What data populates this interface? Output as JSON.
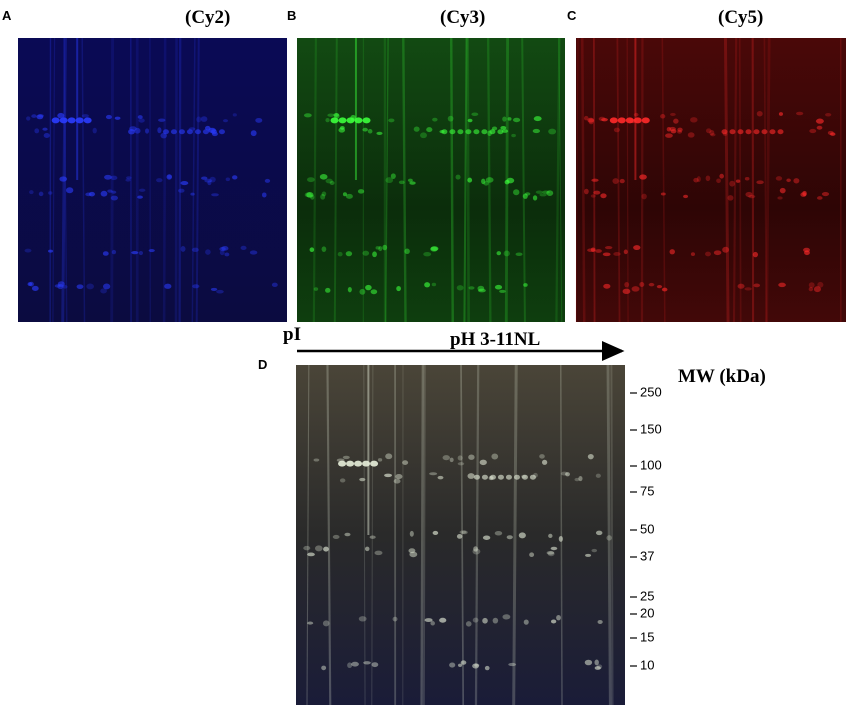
{
  "panels": [
    {
      "letter": "A",
      "title": "(Cy2)"
    },
    {
      "letter": "B",
      "title": "(Cy3)"
    },
    {
      "letter": "C",
      "title": "(Cy5)"
    },
    {
      "letter": "D"
    }
  ],
  "axis": {
    "x_label": "pI",
    "range_label": "pH 3-11NL",
    "y_label": "MW (kDa)",
    "markers": [
      250,
      150,
      100,
      75,
      50,
      37,
      25,
      20,
      15,
      10
    ]
  }
}
